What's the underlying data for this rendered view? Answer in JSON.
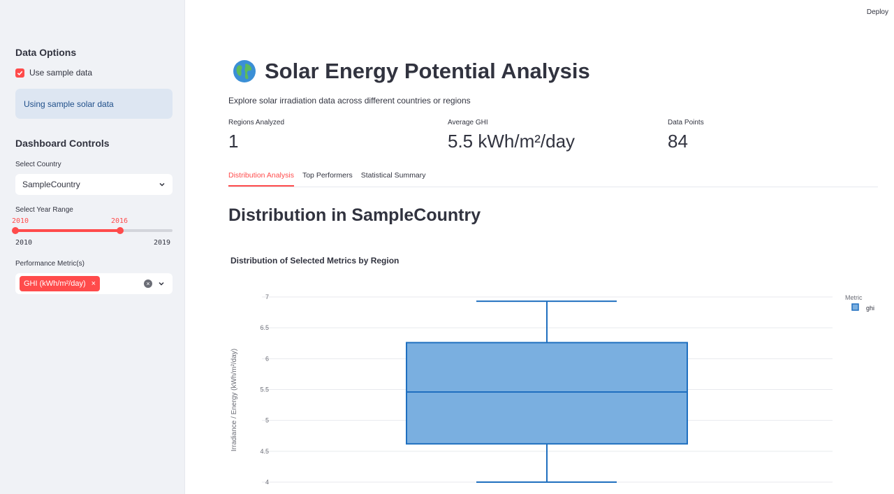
{
  "app": {
    "deploy_label": "Deploy"
  },
  "sidebar": {
    "data_options_title": "Data Options",
    "use_sample_label": "Use sample data",
    "use_sample_checked": true,
    "info_text": "Using sample solar data",
    "dashboard_controls_title": "Dashboard Controls",
    "country_label": "Select Country",
    "country_value": "SampleCountry",
    "year_range_label": "Select Year Range",
    "year_range": {
      "selected_start": "2010",
      "selected_end": "2016",
      "min": "2010",
      "max": "2019",
      "min_num": 2010,
      "max_num": 2019,
      "start_num": 2010,
      "end_num": 2016
    },
    "metric_label": "Performance Metric(s)",
    "metric_tags": [
      "GHI (kWh/m²/day)"
    ]
  },
  "main": {
    "title_icon": "globe-icon",
    "title": "Solar Energy Potential Analysis",
    "subtitle": "Explore solar irradiation data across different countries or regions",
    "metrics": [
      {
        "label": "Regions Analyzed",
        "value": "1"
      },
      {
        "label": "Average GHI",
        "value": "5.5 kWh/m²/day"
      },
      {
        "label": "Data Points",
        "value": "84"
      }
    ],
    "tabs": [
      {
        "label": "Distribution Analysis",
        "active": true
      },
      {
        "label": "Top Performers",
        "active": false
      },
      {
        "label": "Statistical Summary",
        "active": false
      }
    ],
    "section_heading": "Distribution in SampleCountry",
    "chart_title": "Distribution of Selected Metrics by Region"
  },
  "chart_data": {
    "type": "box",
    "title": "Distribution of Selected Metrics by Region",
    "ylabel": "Irradiance / Energy (kWh/m²/day)",
    "xlabel": "",
    "ylim": [
      4,
      7
    ],
    "yticks": [
      "4",
      "4.5",
      "5",
      "5.5",
      "6",
      "6.5",
      "7"
    ],
    "ytick_values": [
      4,
      4.5,
      5,
      5.5,
      6,
      6.5,
      7
    ],
    "legend_title": "Metric",
    "legend_position": "top-right",
    "series": [
      {
        "name": "ghi",
        "min": 4.0,
        "q1": 4.62,
        "median": 5.46,
        "q3": 6.26,
        "max": 6.93,
        "color": "#7aafe0",
        "stroke": "#1f6fbf"
      }
    ],
    "grid": true
  }
}
